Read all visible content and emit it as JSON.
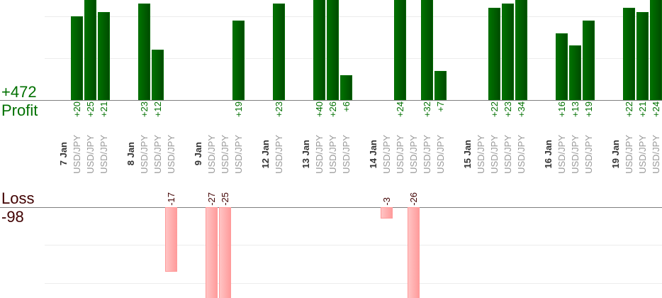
{
  "chart_data": {
    "type": "bar",
    "title": "",
    "profit_label": "Profit",
    "profit_total": "+472",
    "loss_label": "Loss",
    "loss_total": "-98",
    "colors": {
      "profit": "#006a00",
      "loss": "#ffaaaa",
      "profit_text": "#007000",
      "loss_text": "#400000"
    },
    "profit_gridlines": [
      10,
      20
    ],
    "loss_gridlines": [
      10,
      20
    ],
    "groups": [
      {
        "date": "7 Jan",
        "trades": [
          {
            "symbol": "USD/JPY",
            "value": 20,
            "label": "+20"
          },
          {
            "symbol": "USD/JPY",
            "value": 25,
            "label": "+25"
          },
          {
            "symbol": "USD/JPY",
            "value": 21,
            "label": "+21"
          }
        ]
      },
      {
        "date": "8 Jan",
        "trades": [
          {
            "symbol": "USD/JPY",
            "value": 23,
            "label": "+23"
          },
          {
            "symbol": "USD/JPY",
            "value": 12,
            "label": "+12"
          },
          {
            "symbol": "USD/JPY",
            "value": -17,
            "label": "-17"
          }
        ]
      },
      {
        "date": "9 Jan",
        "trades": [
          {
            "symbol": "USD/JPY",
            "value": -27,
            "label": "-27"
          },
          {
            "symbol": "USD/JPY",
            "value": -25,
            "label": "-25"
          },
          {
            "symbol": "USD/JPY",
            "value": 19,
            "label": "+19"
          }
        ]
      },
      {
        "date": "12 Jan",
        "trades": [
          {
            "symbol": "USD/JPY",
            "value": 23,
            "label": "+23"
          }
        ]
      },
      {
        "date": "13 Jan",
        "trades": [
          {
            "symbol": "USD/JPY",
            "value": 40,
            "label": "+40"
          },
          {
            "symbol": "USD/JPY",
            "value": 26,
            "label": "+26"
          },
          {
            "symbol": "USD/JPY",
            "value": 6,
            "label": "+6"
          }
        ]
      },
      {
        "date": "14 Jan",
        "trades": [
          {
            "symbol": "USD/JPY",
            "value": -3,
            "label": "-3"
          },
          {
            "symbol": "USD/JPY",
            "value": 24,
            "label": "+24"
          },
          {
            "symbol": "USD/JPY",
            "value": -26,
            "label": "-26"
          },
          {
            "symbol": "USD/JPY",
            "value": 32,
            "label": "+32"
          },
          {
            "symbol": "USD/JPY",
            "value": 7,
            "label": "+7"
          }
        ]
      },
      {
        "date": "15 Jan",
        "trades": [
          {
            "symbol": "USD/JPY",
            "value": null,
            "label": null
          },
          {
            "symbol": "USD/JPY",
            "value": 22,
            "label": "+22"
          },
          {
            "symbol": "USD/JPY",
            "value": 23,
            "label": "+23"
          },
          {
            "symbol": "USD/JPY",
            "value": 34,
            "label": "+34"
          }
        ]
      },
      {
        "date": "16 Jan",
        "trades": [
          {
            "symbol": "USD/JPY",
            "value": 16,
            "label": "+16"
          },
          {
            "symbol": "USD/JPY",
            "value": 13,
            "label": "+13"
          },
          {
            "symbol": "USD/JPY",
            "value": 19,
            "label": "+19"
          }
        ]
      },
      {
        "date": "19 Jan",
        "trades": [
          {
            "symbol": "USD/JPY",
            "value": 22,
            "label": "+22"
          },
          {
            "symbol": "USD/JPY",
            "value": 21,
            "label": "+21"
          },
          {
            "symbol": "USD/JPY",
            "value": 24,
            "label": "+24"
          }
        ]
      }
    ]
  }
}
